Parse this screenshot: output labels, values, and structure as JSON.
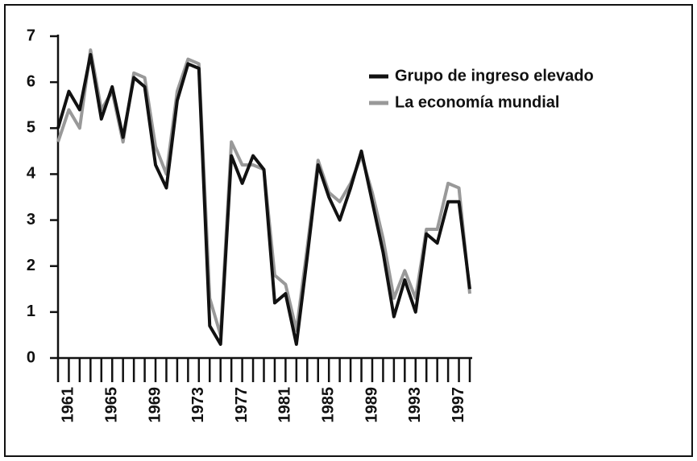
{
  "chart_data": {
    "type": "line",
    "categories": [
      null,
      "1961",
      null,
      null,
      null,
      "1965",
      null,
      null,
      null,
      "1969",
      null,
      null,
      null,
      "1973",
      null,
      null,
      null,
      "1977",
      null,
      null,
      null,
      "1981",
      null,
      null,
      null,
      "1985",
      null,
      null,
      null,
      "1989",
      null,
      null,
      null,
      "1993",
      null,
      null,
      null,
      "1997",
      null
    ],
    "series": [
      {
        "name": "Grupo de ingreso elevado",
        "color": "#111111",
        "values": [
          5.0,
          5.8,
          5.4,
          6.6,
          5.2,
          5.9,
          4.8,
          6.1,
          5.9,
          4.2,
          3.7,
          5.6,
          6.4,
          6.3,
          0.7,
          0.3,
          4.4,
          3.8,
          4.4,
          4.1,
          1.2,
          1.4,
          0.3,
          2.2,
          4.2,
          3.5,
          3.0,
          3.7,
          4.5,
          3.4,
          2.3,
          0.9,
          1.7,
          1.0,
          2.7,
          2.5,
          3.4,
          3.4,
          1.5
        ]
      },
      {
        "name": "La economía mundial",
        "color": "#999999",
        "values": [
          4.7,
          5.4,
          5.0,
          6.7,
          5.4,
          5.8,
          4.7,
          6.2,
          6.1,
          4.6,
          4.0,
          5.8,
          6.5,
          6.4,
          1.3,
          0.5,
          4.7,
          4.2,
          4.2,
          4.1,
          1.8,
          1.6,
          0.6,
          2.4,
          4.3,
          3.6,
          3.4,
          3.8,
          4.4,
          3.6,
          2.6,
          1.3,
          1.9,
          1.3,
          2.8,
          2.8,
          3.8,
          3.7,
          1.4
        ]
      }
    ],
    "ylim": [
      0,
      7
    ],
    "yticks": [
      0,
      1,
      2,
      3,
      4,
      5,
      6,
      7
    ],
    "legend": "upper right"
  }
}
